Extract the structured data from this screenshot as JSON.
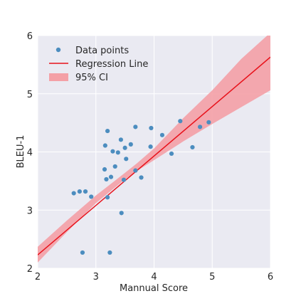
{
  "chart_data": {
    "type": "scatter",
    "xlabel": "Mannual Score",
    "ylabel": "BLEU-1",
    "xlim": [
      2,
      6
    ],
    "ylim": [
      2,
      6
    ],
    "xticks": [
      "2",
      "3",
      "4",
      "5",
      "6"
    ],
    "yticks": [
      "2",
      "3",
      "4",
      "5",
      "6"
    ],
    "grid": true,
    "legend_position": "top-left",
    "legend": {
      "points": "Data points",
      "line": "Regression Line",
      "ci": "95% CI"
    },
    "colors": {
      "background": "#eaeaf2",
      "grid": "#ffffff",
      "points": "#4c8dbf",
      "line": "#e8111a",
      "ci": "#f4a0a6"
    },
    "points": [
      {
        "x": 2.62,
        "y": 3.29
      },
      {
        "x": 2.72,
        "y": 3.32
      },
      {
        "x": 2.82,
        "y": 3.32
      },
      {
        "x": 2.92,
        "y": 3.23
      },
      {
        "x": 2.77,
        "y": 2.27
      },
      {
        "x": 3.15,
        "y": 3.7
      },
      {
        "x": 3.16,
        "y": 4.11
      },
      {
        "x": 3.18,
        "y": 3.53
      },
      {
        "x": 3.2,
        "y": 4.36
      },
      {
        "x": 3.2,
        "y": 3.22
      },
      {
        "x": 3.24,
        "y": 2.27
      },
      {
        "x": 3.26,
        "y": 3.57
      },
      {
        "x": 3.29,
        "y": 4.01
      },
      {
        "x": 3.33,
        "y": 3.75
      },
      {
        "x": 3.38,
        "y": 3.99
      },
      {
        "x": 3.43,
        "y": 4.21
      },
      {
        "x": 3.44,
        "y": 2.95
      },
      {
        "x": 3.48,
        "y": 3.52
      },
      {
        "x": 3.5,
        "y": 4.07
      },
      {
        "x": 3.52,
        "y": 3.88
      },
      {
        "x": 3.6,
        "y": 4.13
      },
      {
        "x": 3.68,
        "y": 3.68
      },
      {
        "x": 3.68,
        "y": 4.43
      },
      {
        "x": 3.78,
        "y": 3.56
      },
      {
        "x": 3.94,
        "y": 4.09
      },
      {
        "x": 3.95,
        "y": 4.41
      },
      {
        "x": 4.14,
        "y": 4.29
      },
      {
        "x": 4.3,
        "y": 3.97
      },
      {
        "x": 4.45,
        "y": 4.53
      },
      {
        "x": 4.66,
        "y": 4.08
      },
      {
        "x": 4.79,
        "y": 4.43
      },
      {
        "x": 4.94,
        "y": 4.51
      }
    ],
    "regression": {
      "x": [
        2,
        6
      ],
      "y": [
        2.23,
        5.63
      ]
    },
    "ci_band": {
      "x": [
        2.0,
        2.5,
        3.0,
        3.5,
        3.7,
        4.0,
        4.5,
        5.0,
        5.5,
        6.0
      ],
      "lower": [
        2.1,
        2.62,
        3.12,
        3.53,
        3.67,
        3.86,
        4.18,
        4.48,
        4.77,
        5.06
      ],
      "upper": [
        2.37,
        2.82,
        3.25,
        3.64,
        3.8,
        4.06,
        4.58,
        5.06,
        5.6,
        6.05
      ]
    }
  }
}
